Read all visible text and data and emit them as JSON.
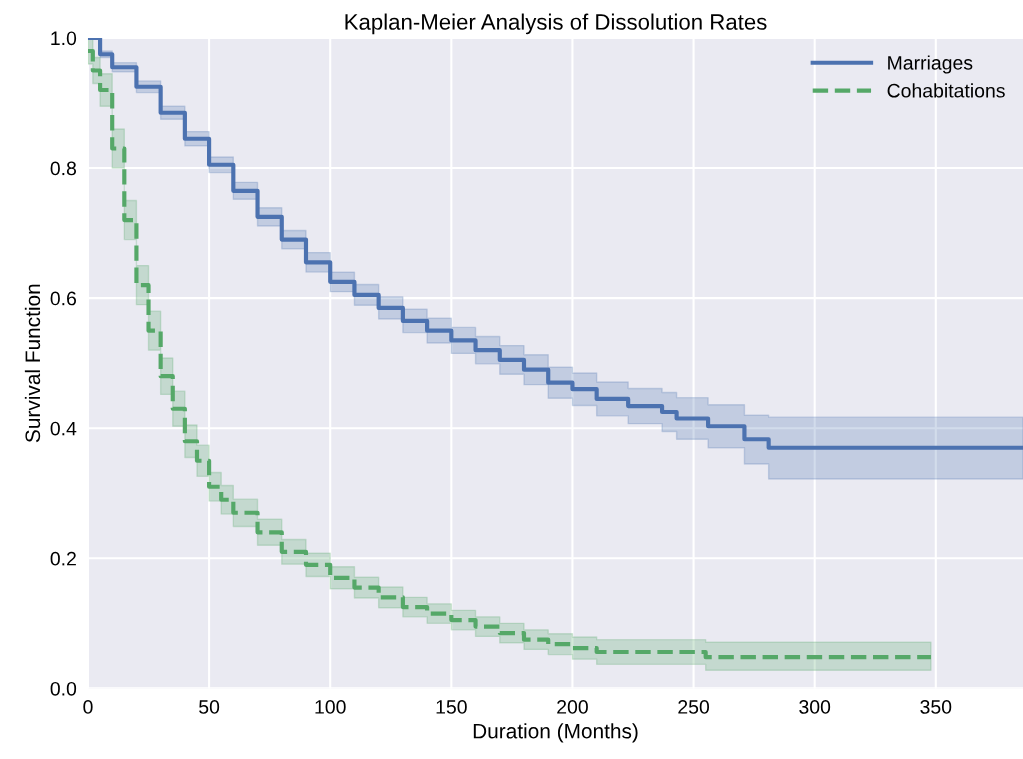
{
  "chart_data": {
    "type": "step",
    "title": "Kaplan-Meier Analysis of Dissolution Rates",
    "xlabel": "Duration (Months)",
    "ylabel": "Survival Function",
    "xlim": [
      0,
      386
    ],
    "ylim": [
      0,
      1
    ],
    "xticks": [
      0,
      50,
      100,
      150,
      200,
      250,
      300,
      350
    ],
    "yticks": [
      {
        "value": 0,
        "label": "0.0"
      },
      {
        "value": 0.2,
        "label": "0.2"
      },
      {
        "value": 0.4,
        "label": "0.4"
      },
      {
        "value": 0.6,
        "label": "0.6"
      },
      {
        "value": 0.8,
        "label": "0.8"
      },
      {
        "value": 1,
        "label": "1.0"
      }
    ],
    "grid": true,
    "legend": "top right",
    "series": [
      {
        "name": "Marriages",
        "color": "#4c72b0",
        "line_style": "solid",
        "x": [
          0,
          5,
          10,
          20,
          30,
          40,
          50,
          60,
          70,
          80,
          90,
          100,
          110,
          120,
          130,
          140,
          150,
          160,
          170,
          180,
          190,
          200,
          210,
          223,
          237,
          243,
          256,
          271,
          281,
          386
        ],
        "values": [
          1.0,
          0.975,
          0.955,
          0.925,
          0.885,
          0.845,
          0.805,
          0.765,
          0.725,
          0.69,
          0.655,
          0.625,
          0.605,
          0.585,
          0.565,
          0.55,
          0.535,
          0.52,
          0.505,
          0.49,
          0.47,
          0.46,
          0.445,
          0.434,
          0.425,
          0.415,
          0.403,
          0.383,
          0.37,
          0.37
        ],
        "lower": [
          1.0,
          0.97,
          0.948,
          0.916,
          0.875,
          0.834,
          0.793,
          0.752,
          0.711,
          0.676,
          0.64,
          0.61,
          0.589,
          0.568,
          0.547,
          0.531,
          0.515,
          0.499,
          0.483,
          0.467,
          0.446,
          0.435,
          0.419,
          0.407,
          0.395,
          0.383,
          0.37,
          0.345,
          0.322,
          0.322
        ],
        "upper": [
          1.0,
          0.98,
          0.962,
          0.934,
          0.895,
          0.856,
          0.817,
          0.778,
          0.739,
          0.704,
          0.67,
          0.64,
          0.621,
          0.602,
          0.583,
          0.569,
          0.555,
          0.541,
          0.527,
          0.513,
          0.494,
          0.485,
          0.471,
          0.461,
          0.455,
          0.447,
          0.436,
          0.42,
          0.417,
          0.417
        ]
      },
      {
        "name": "Cohabitations",
        "color": "#55a868",
        "line_style": "dashed",
        "x": [
          0,
          2,
          5,
          10,
          15,
          20,
          25,
          30,
          35,
          40,
          45,
          50,
          55,
          60,
          70,
          80,
          90,
          100,
          110,
          120,
          130,
          140,
          150,
          160,
          170,
          180,
          190,
          200,
          210,
          255,
          348
        ],
        "values": [
          0.98,
          0.95,
          0.92,
          0.83,
          0.72,
          0.62,
          0.55,
          0.48,
          0.43,
          0.38,
          0.35,
          0.31,
          0.29,
          0.27,
          0.24,
          0.21,
          0.19,
          0.17,
          0.155,
          0.14,
          0.125,
          0.115,
          0.105,
          0.095,
          0.085,
          0.075,
          0.068,
          0.062,
          0.056,
          0.048,
          0.048
        ],
        "lower": [
          0.96,
          0.93,
          0.895,
          0.8,
          0.69,
          0.59,
          0.52,
          0.452,
          0.403,
          0.355,
          0.326,
          0.288,
          0.268,
          0.249,
          0.22,
          0.191,
          0.172,
          0.153,
          0.139,
          0.124,
          0.11,
          0.1,
          0.09,
          0.08,
          0.07,
          0.06,
          0.052,
          0.045,
          0.037,
          0.028,
          0.028
        ],
        "upper": [
          1.0,
          0.97,
          0.945,
          0.86,
          0.75,
          0.65,
          0.58,
          0.508,
          0.457,
          0.405,
          0.374,
          0.332,
          0.312,
          0.291,
          0.26,
          0.229,
          0.208,
          0.187,
          0.171,
          0.156,
          0.14,
          0.13,
          0.12,
          0.11,
          0.1,
          0.09,
          0.084,
          0.079,
          0.075,
          0.071,
          0.071
        ]
      }
    ]
  }
}
